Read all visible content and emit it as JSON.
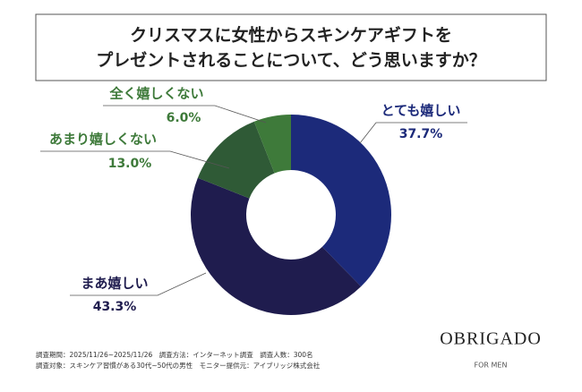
{
  "chart_data": {
    "type": "donut",
    "title": [
      "クリスマスに女性からスキンケアギフトを",
      "プレゼントされることについて、どう思いますか？"
    ],
    "categories": [
      "とても嬉しい",
      "まあ嬉しい",
      "あまり嬉しくない",
      "全く嬉しくない"
    ],
    "values": [
      37.7,
      43.3,
      13.0,
      6.0
    ],
    "value_labels": [
      "37.7%",
      "43.3%",
      "13.0%",
      "6.0%"
    ],
    "colors": [
      "#1c2a7a",
      "#1f1c4e",
      "#2f5a36",
      "#3e7a3a"
    ],
    "label_colors": [
      "#1c2a7a",
      "#1f1c4e",
      "#3e7a3a",
      "#3e7a3a"
    ],
    "notes": [
      "調査期間：2025/11/26~2025/11/26　調査方法：インターネット調査　調査人数：300名",
      "調査対象：スキンケア習慣がある30代~50代の男性　モニター提供元：アイブリッジ株式会社"
    ],
    "brand": "OBRIGADO",
    "brand_sub": "FOR MEN"
  }
}
